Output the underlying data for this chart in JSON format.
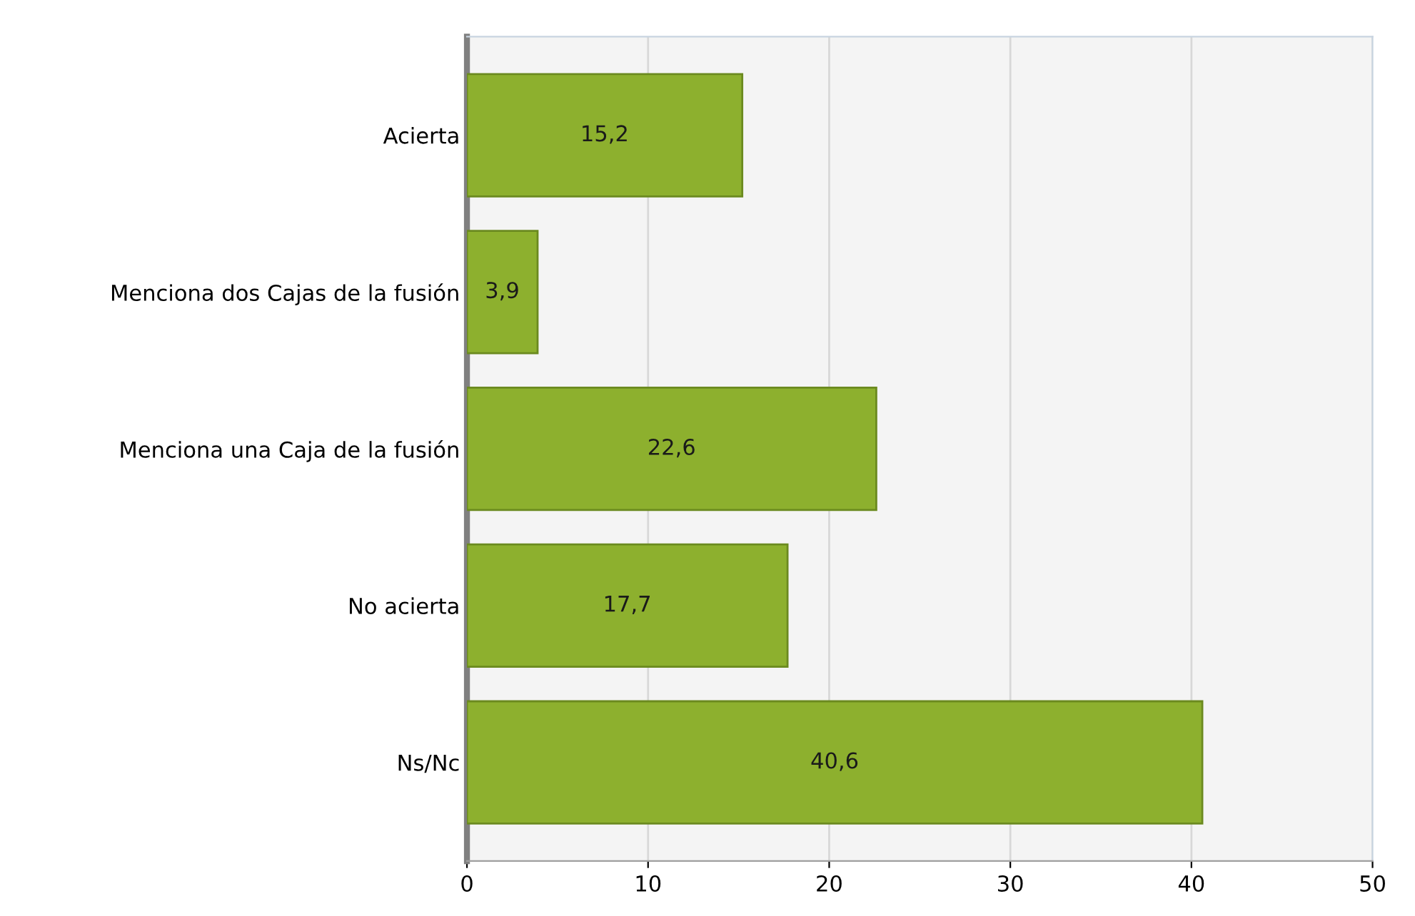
{
  "chart_data": {
    "type": "bar",
    "orientation": "horizontal",
    "categories": [
      "Acierta",
      "Menciona dos Cajas de la fusión",
      "Menciona una Caja de la fusión",
      "No acierta",
      "Ns/Nc"
    ],
    "values": [
      15.2,
      3.9,
      22.6,
      17.7,
      40.6
    ],
    "value_labels": [
      "15,2",
      "3,9",
      "22,6",
      "17,7",
      "40,6"
    ],
    "color": "#8db02e",
    "xlim": [
      0,
      50
    ],
    "xticks": [
      0,
      10,
      20,
      30,
      40,
      50
    ],
    "grid": "x"
  }
}
